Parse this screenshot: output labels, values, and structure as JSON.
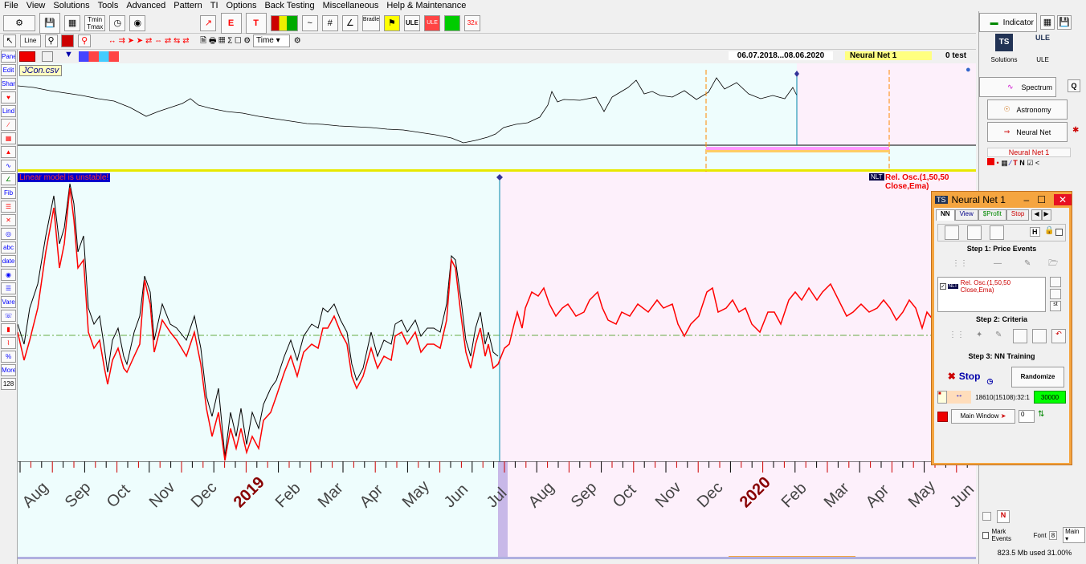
{
  "menu": [
    "File",
    "View",
    "Solutions",
    "Tools",
    "Advanced",
    "Pattern",
    "TI",
    "Options",
    "Back Testing",
    "Miscellaneous",
    "Help & Maintenance"
  ],
  "toolbar": {
    "tmin": "Tmin",
    "tmax": "Tmax",
    "bradley": "Bradley",
    "ule": "ULE",
    "zoom32": "32x",
    "line_label": "Line",
    "time_select": "Time",
    "indicator_label": "Indicator"
  },
  "status": {
    "date_range": "06.07.2018...08.06.2020",
    "indicator_name": "Neural Net  1",
    "test_label": "0 test"
  },
  "leftbar": [
    "Panel",
    "Edit",
    "Shar",
    "Lind",
    "Fib",
    "abc",
    "date",
    "Vare",
    "%",
    "More",
    "128"
  ],
  "charts": {
    "file_label": "JCon.csv",
    "warning": "Linear model is unstable!",
    "osc_label": "Rel. Osc.(1,50,50 Close,Ema)",
    "nlt_badge": "NLT"
  },
  "xaxis": {
    "labels": [
      "Aug",
      "Sep",
      "Oct",
      "Nov",
      "Dec",
      "2019",
      "Feb",
      "Mar",
      "Apr",
      "May",
      "Jun",
      "Jul",
      "Aug",
      "Sep",
      "Oct",
      "Nov",
      "Dec",
      "2020",
      "Feb",
      "Mar",
      "Apr",
      "May",
      "Jun"
    ],
    "year_labels": [
      "2019",
      "2020"
    ]
  },
  "rightpanel": {
    "solutions": "Solutions",
    "ule": "ULE",
    "spectrum": "Spectrum",
    "q": "Q",
    "astronomy": "Astronomy",
    "neural_net": "Neural Net",
    "nn_list_title": "Neural Net  1",
    "mark_events": "Mark Events",
    "font_label": "Font",
    "font_value": "8",
    "main_select": "Main",
    "memory": "823.5 Mb used 31.00%"
  },
  "nn_window": {
    "title": "Neural Net  1",
    "tabs": [
      "NN",
      "View",
      "$Profit",
      "Stop"
    ],
    "h_label": "H",
    "step1": "Step 1: Price Events",
    "event_item": "Rel. Osc.(1,50,50 Close,Ema)",
    "st_label": "st",
    "step2": "Step 2: Criteria",
    "step3": "Step 3: NN Training",
    "stop_label": "Stop",
    "randomize": "Randomize",
    "training_info": "18610(15108):32:1",
    "epochs": "30000",
    "main_window": "Main Window",
    "counter": "0"
  },
  "colors": {
    "chart_bg": "#eefdfd",
    "future_bg": "#fdf0fb",
    "osc_line": "#ff0000",
    "price_line": "#000000",
    "nn_frame": "#f5a540"
  }
}
